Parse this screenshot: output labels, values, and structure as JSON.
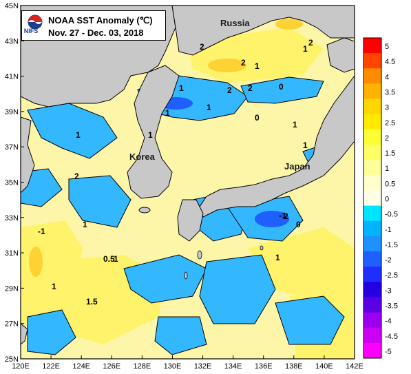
{
  "title": {
    "line1": "NOAA SST Anomaly (℃)",
    "line2": "Nov. 27 - Dec. 03,  2018",
    "logo_text": "NIFS"
  },
  "places": [
    {
      "id": "russia",
      "label": "Russia"
    },
    {
      "id": "korea",
      "label": "Korea"
    },
    {
      "id": "japan",
      "label": "Japan"
    }
  ],
  "axes": {
    "x_ticks": [
      "120E",
      "122E",
      "124E",
      "126E",
      "128E",
      "130E",
      "132E",
      "134E",
      "136E",
      "138E",
      "140E",
      "142E"
    ],
    "y_ticks": [
      "45N",
      "43N",
      "41N",
      "39N",
      "37N",
      "35N",
      "33N",
      "31N",
      "29N",
      "27N",
      "25N"
    ],
    "lon_range": [
      120,
      142
    ],
    "lat_range": [
      25,
      45
    ]
  },
  "colorbar": {
    "labels": [
      "5",
      "4.5",
      "4",
      "3.5",
      "3",
      "2.5",
      "2",
      "1.5",
      "1",
      "0.5",
      "0",
      "-0.5",
      "-1",
      "-1.5",
      "-2",
      "-2.5",
      "-3",
      "-3.5",
      "-4",
      "-4.5",
      "-5"
    ],
    "colors": [
      "#ff0000",
      "#ff4500",
      "#ff8c00",
      "#ffb300",
      "#ffd700",
      "#ffea00",
      "#ffff33",
      "#ffff66",
      "#ffff99",
      "#ffffcc",
      "#ffffe8",
      "#00e5ff",
      "#00b4ff",
      "#1e90ff",
      "#1f5fff",
      "#1e2eff",
      "#2400e0",
      "#5a00e6",
      "#9a00ee",
      "#cc00f5",
      "#ff00ff"
    ]
  },
  "contour_labels": [
    {
      "text": "2"
    },
    {
      "text": "2"
    },
    {
      "text": "1"
    },
    {
      "text": "2"
    },
    {
      "text": "2"
    },
    {
      "text": "1"
    },
    {
      "text": "0"
    },
    {
      "text": "2"
    },
    {
      "text": "1"
    },
    {
      "text": "1"
    },
    {
      "text": "1"
    },
    {
      "text": "0"
    },
    {
      "text": "1"
    },
    {
      "text": "1"
    },
    {
      "text": "0.5"
    },
    {
      "text": "1"
    },
    {
      "text": "1.5"
    },
    {
      "text": "1"
    },
    {
      "text": "1"
    },
    {
      "text": "2"
    },
    {
      "text": "-1"
    },
    {
      "text": "0"
    },
    {
      "text": "1"
    },
    {
      "text": "1"
    },
    {
      "text": "1"
    },
    {
      "text": "-1"
    },
    {
      "text": "2"
    }
  ]
}
